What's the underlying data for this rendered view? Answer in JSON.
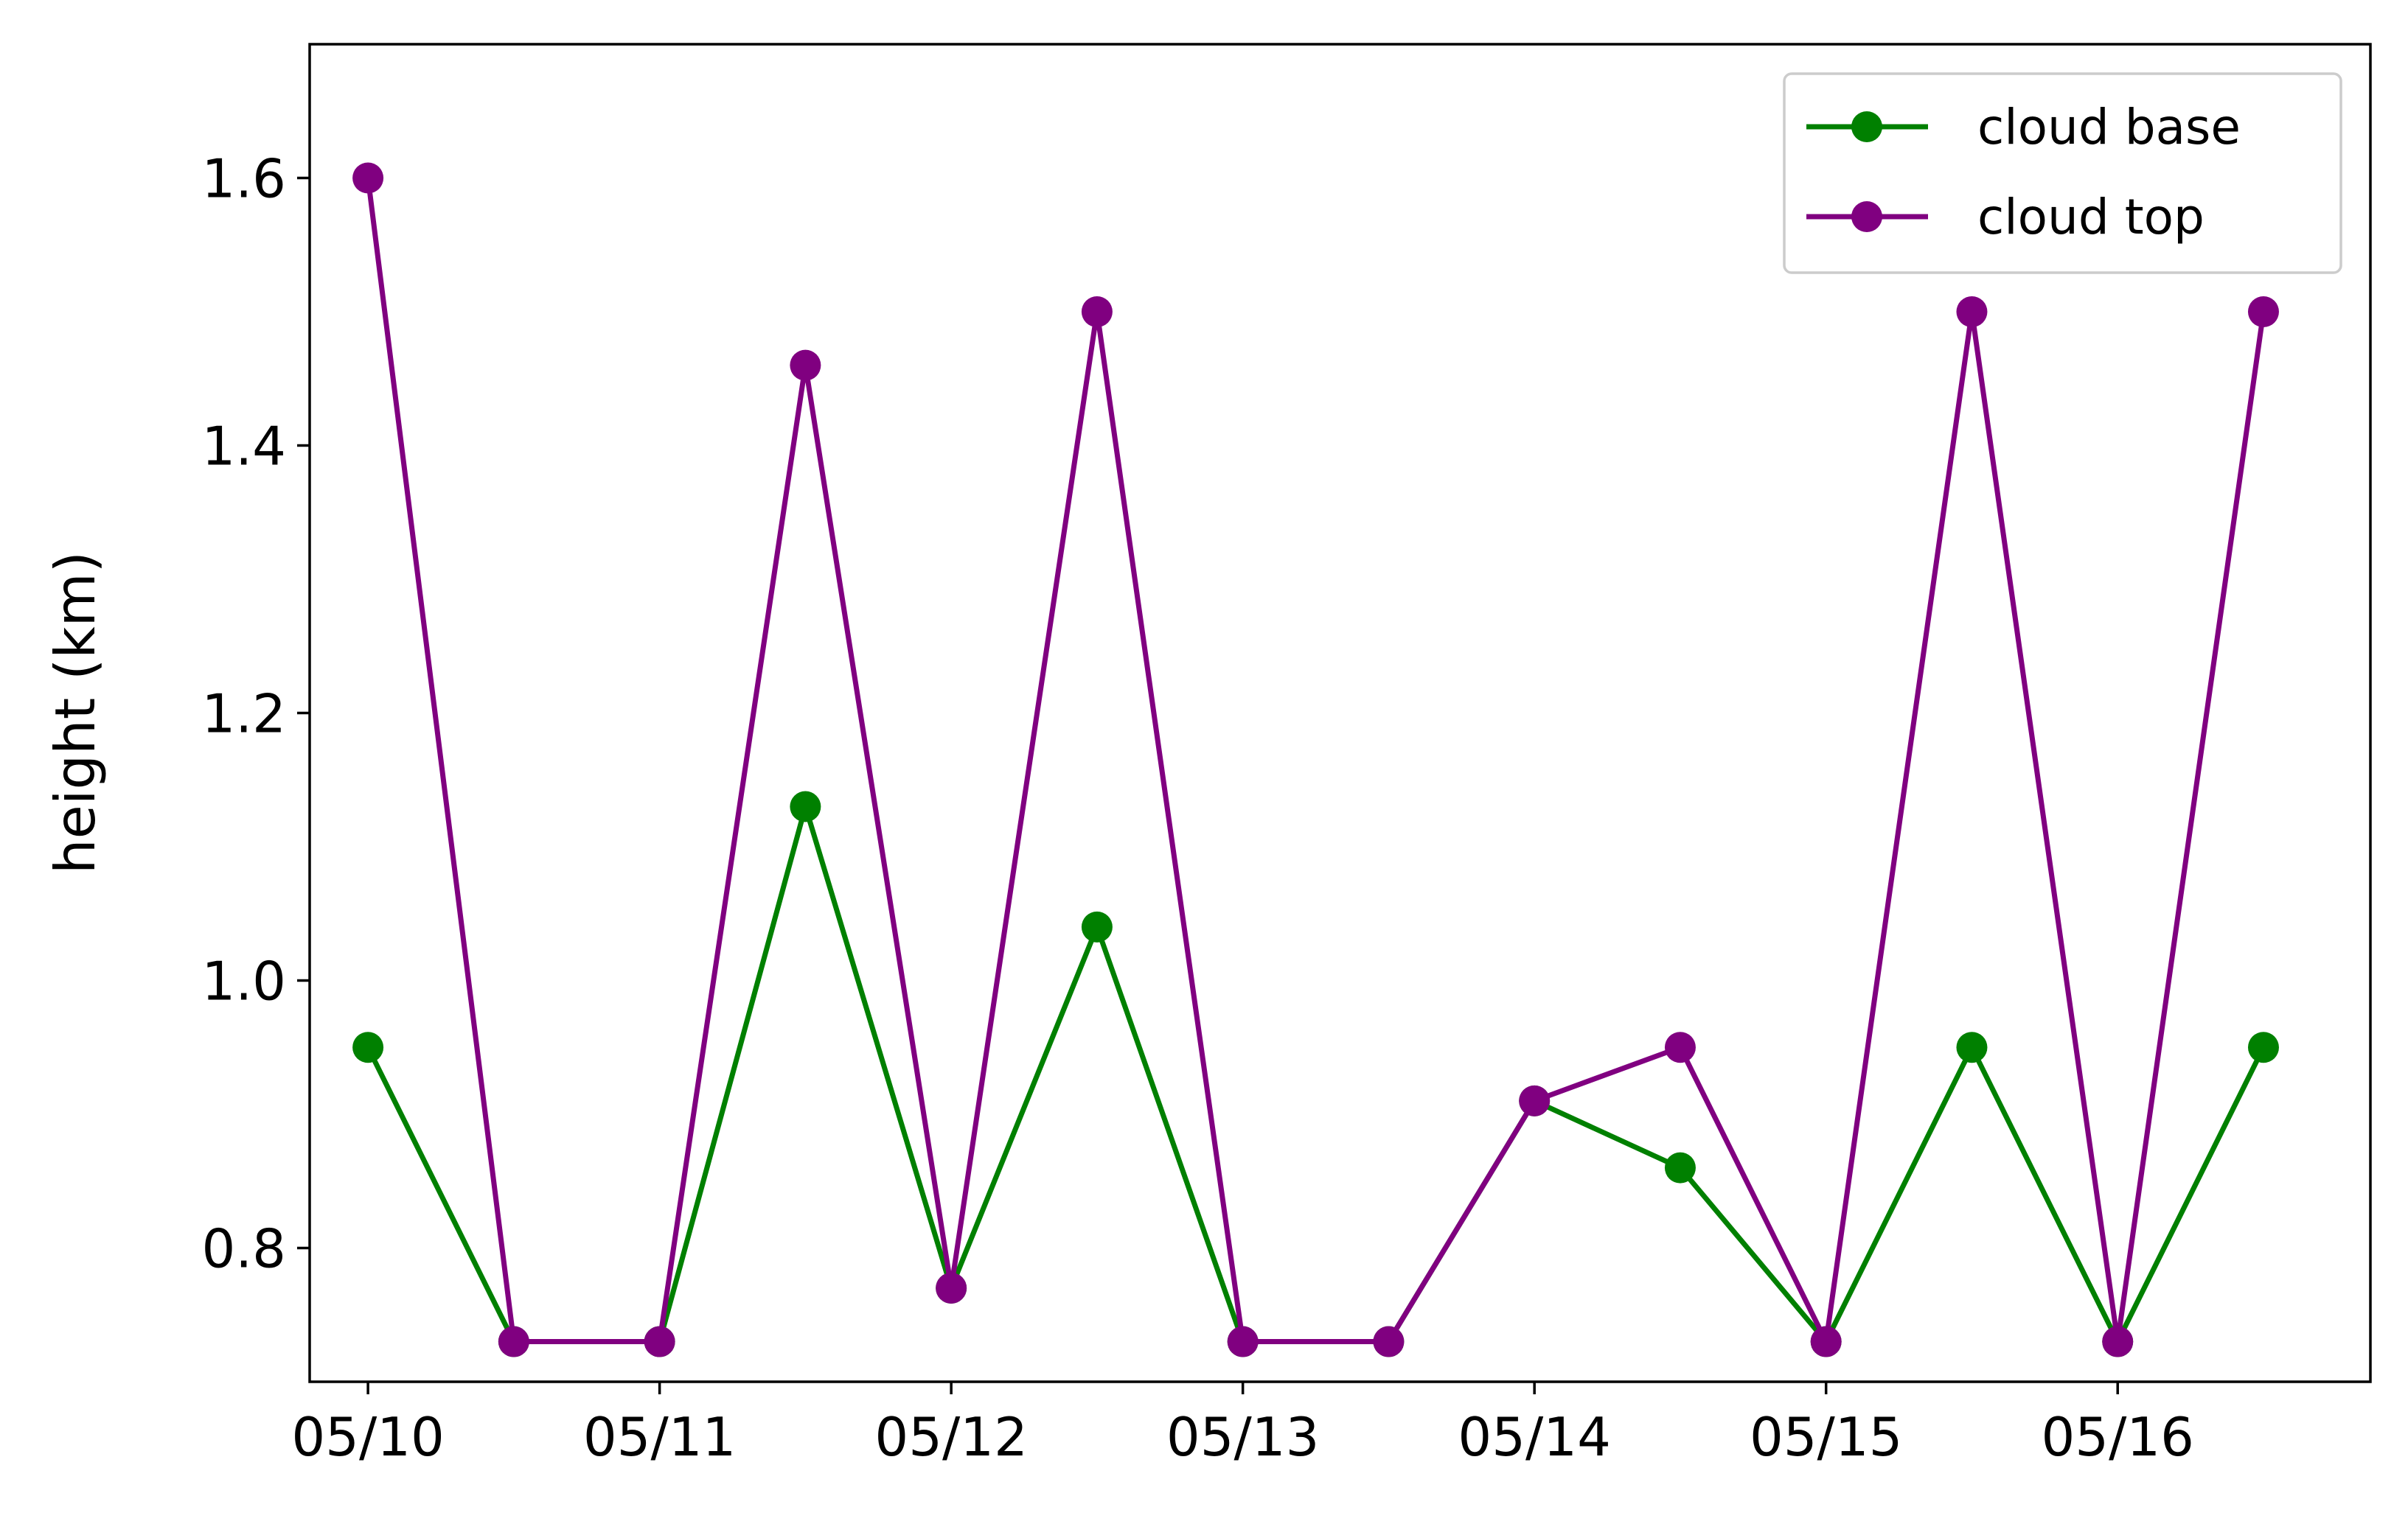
{
  "chart_data": {
    "type": "line",
    "title": "",
    "xlabel": "",
    "ylabel": "height (km)",
    "x": [
      "05/10 00:00",
      "05/10 12:00",
      "05/11 00:00",
      "05/11 12:00",
      "05/12 00:00",
      "05/12 12:00",
      "05/13 00:00",
      "05/13 12:00",
      "05/14 00:00",
      "05/14 12:00",
      "05/15 00:00",
      "05/15 12:00",
      "05/16 00:00",
      "05/16 12:00"
    ],
    "xtick_labels": [
      "05/10",
      "05/11",
      "05/12",
      "05/13",
      "05/14",
      "05/15",
      "05/16"
    ],
    "xlim": [
      "05/09 19:12",
      "05/16 20:48"
    ],
    "ylim": [
      0.7,
      1.7
    ],
    "yticks": [
      0.8,
      1.0,
      1.2,
      1.4,
      1.6
    ],
    "ytick_labels": [
      "0.8",
      "1.0",
      "1.2",
      "1.4",
      "1.6"
    ],
    "grid": false,
    "legend_position": "top-right",
    "series": [
      {
        "name": "cloud base",
        "color": "#008000",
        "values": [
          0.95,
          0.73,
          0.73,
          1.13,
          0.77,
          1.04,
          0.73,
          0.73,
          0.91,
          0.86,
          0.73,
          0.95,
          0.73,
          0.95
        ]
      },
      {
        "name": "cloud top",
        "color": "#800080",
        "values": [
          1.6,
          0.73,
          0.73,
          1.46,
          0.77,
          1.5,
          0.73,
          0.73,
          0.91,
          0.95,
          0.73,
          1.5,
          0.73,
          1.5
        ]
      }
    ]
  }
}
